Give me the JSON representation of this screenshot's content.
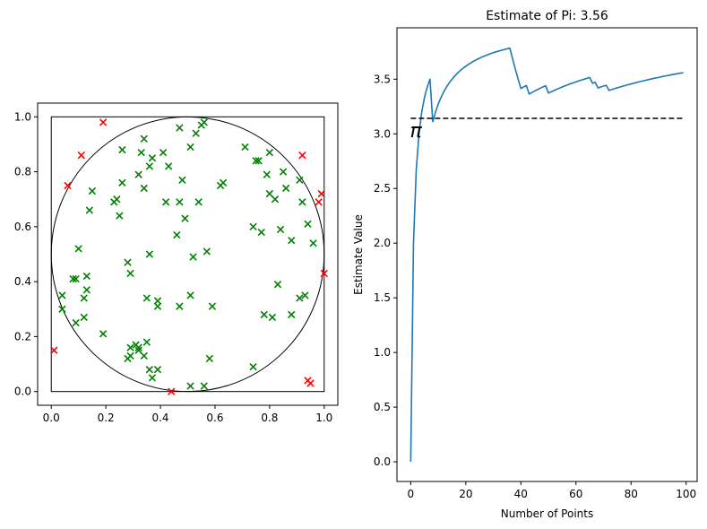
{
  "figure": {
    "background": "#ffffff",
    "colors": {
      "inside": "#008000",
      "outside": "#ff0000",
      "line": "#1f77b4",
      "reference": "#000000"
    }
  },
  "chart_data": [
    {
      "id": "scatter",
      "type": "scatter",
      "title": "",
      "xlabel": "",
      "ylabel": "",
      "xlim": [
        -0.05,
        1.05
      ],
      "ylim": [
        -0.05,
        1.05
      ],
      "xticks": [
        "0.0",
        "0.2",
        "0.4",
        "0.6",
        "0.8",
        "1.0"
      ],
      "yticks": [
        "0.0",
        "0.2",
        "0.4",
        "0.6",
        "0.8",
        "1.0"
      ],
      "shapes": {
        "unit_square": [
          0,
          0,
          1,
          1
        ],
        "circle": {
          "center": [
            0.5,
            0.5
          ],
          "radius": 0.5
        }
      },
      "marker": "x",
      "series": [
        {
          "color": "#008000",
          "points": [
            [
              0.47,
              0.96
            ],
            [
              0.51,
              0.89
            ],
            [
              0.53,
              0.94
            ],
            [
              0.55,
              0.97
            ],
            [
              0.56,
              0.98
            ],
            [
              0.34,
              0.92
            ],
            [
              0.41,
              0.87
            ],
            [
              0.37,
              0.85
            ],
            [
              0.33,
              0.87
            ],
            [
              0.26,
              0.88
            ],
            [
              0.36,
              0.82
            ],
            [
              0.43,
              0.82
            ],
            [
              0.32,
              0.79
            ],
            [
              0.26,
              0.76
            ],
            [
              0.34,
              0.74
            ],
            [
              0.15,
              0.73
            ],
            [
              0.24,
              0.7
            ],
            [
              0.23,
              0.69
            ],
            [
              0.25,
              0.64
            ],
            [
              0.14,
              0.66
            ],
            [
              0.42,
              0.69
            ],
            [
              0.47,
              0.69
            ],
            [
              0.48,
              0.77
            ],
            [
              0.54,
              0.69
            ],
            [
              0.62,
              0.75
            ],
            [
              0.63,
              0.76
            ],
            [
              0.49,
              0.63
            ],
            [
              0.46,
              0.57
            ],
            [
              0.57,
              0.51
            ],
            [
              0.52,
              0.49
            ],
            [
              0.36,
              0.5
            ],
            [
              0.1,
              0.52
            ],
            [
              0.28,
              0.47
            ],
            [
              0.29,
              0.43
            ],
            [
              0.08,
              0.41
            ],
            [
              0.09,
              0.41
            ],
            [
              0.13,
              0.42
            ],
            [
              0.13,
              0.37
            ],
            [
              0.12,
              0.34
            ],
            [
              0.04,
              0.35
            ],
            [
              0.04,
              0.3
            ],
            [
              0.09,
              0.25
            ],
            [
              0.12,
              0.27
            ],
            [
              0.19,
              0.21
            ],
            [
              0.35,
              0.34
            ],
            [
              0.39,
              0.33
            ],
            [
              0.39,
              0.31
            ],
            [
              0.51,
              0.35
            ],
            [
              0.47,
              0.31
            ],
            [
              0.59,
              0.31
            ],
            [
              0.29,
              0.16
            ],
            [
              0.31,
              0.17
            ],
            [
              0.32,
              0.15
            ],
            [
              0.32,
              0.16
            ],
            [
              0.34,
              0.13
            ],
            [
              0.35,
              0.18
            ],
            [
              0.28,
              0.12
            ],
            [
              0.29,
              0.13
            ],
            [
              0.36,
              0.08
            ],
            [
              0.39,
              0.08
            ],
            [
              0.37,
              0.05
            ],
            [
              0.51,
              0.02
            ],
            [
              0.56,
              0.02
            ],
            [
              0.58,
              0.12
            ],
            [
              0.71,
              0.89
            ],
            [
              0.75,
              0.84
            ],
            [
              0.76,
              0.84
            ],
            [
              0.79,
              0.79
            ],
            [
              0.8,
              0.87
            ],
            [
              0.85,
              0.8
            ],
            [
              0.8,
              0.72
            ],
            [
              0.82,
              0.7
            ],
            [
              0.86,
              0.74
            ],
            [
              0.91,
              0.77
            ],
            [
              0.92,
              0.69
            ],
            [
              0.94,
              0.61
            ],
            [
              0.96,
              0.54
            ],
            [
              0.84,
              0.59
            ],
            [
              0.88,
              0.55
            ],
            [
              0.74,
              0.6
            ],
            [
              0.77,
              0.58
            ],
            [
              0.83,
              0.39
            ],
            [
              0.93,
              0.35
            ],
            [
              0.91,
              0.34
            ],
            [
              0.88,
              0.28
            ],
            [
              0.78,
              0.28
            ],
            [
              0.81,
              0.27
            ],
            [
              0.74,
              0.09
            ]
          ]
        },
        {
          "color": "#ff0000",
          "points": [
            [
              0.19,
              0.98
            ],
            [
              0.11,
              0.86
            ],
            [
              0.06,
              0.75
            ],
            [
              0.92,
              0.86
            ],
            [
              0.99,
              0.72
            ],
            [
              0.98,
              0.69
            ],
            [
              1.0,
              0.43
            ],
            [
              0.01,
              0.15
            ],
            [
              0.44,
              0.0
            ],
            [
              0.94,
              0.04
            ],
            [
              0.95,
              0.03
            ]
          ]
        }
      ]
    },
    {
      "id": "convergence",
      "type": "line",
      "title": "Estimate of Pi: 3.56",
      "xlabel": "Number of Points",
      "ylabel": "Estimate Value",
      "xlim": [
        -5,
        104
      ],
      "ylim": [
        -0.18,
        3.97
      ],
      "xticks": [
        "0",
        "20",
        "40",
        "60",
        "80",
        "100"
      ],
      "yticks": [
        "0.0",
        "0.5",
        "1.0",
        "1.5",
        "2.0",
        "2.5",
        "3.0",
        "3.5"
      ],
      "reference": {
        "value": 3.14159,
        "style": "dashed",
        "label": "π"
      },
      "series": [
        {
          "color": "#1f77b4",
          "x": [
            0,
            1,
            2,
            3,
            4,
            5,
            6,
            7,
            8,
            9,
            10,
            11,
            12,
            13,
            14,
            15,
            16,
            17,
            18,
            19,
            20,
            21,
            22,
            23,
            24,
            25,
            26,
            27,
            28,
            29,
            30,
            31,
            32,
            33,
            34,
            35,
            36,
            37,
            38,
            39,
            40,
            41,
            42,
            43,
            44,
            45,
            46,
            47,
            48,
            49,
            50,
            51,
            52,
            53,
            54,
            55,
            56,
            57,
            58,
            59,
            60,
            61,
            62,
            63,
            64,
            65,
            66,
            67,
            68,
            69,
            70,
            71,
            72,
            73,
            74,
            75,
            76,
            77,
            78,
            79,
            80,
            81,
            82,
            83,
            84,
            85,
            86,
            87,
            88,
            89,
            90,
            91,
            92,
            93,
            94,
            95,
            96,
            97,
            98,
            99
          ],
          "values": [
            0.0,
            2.0,
            2.667,
            3.0,
            3.2,
            3.333,
            3.429,
            3.5,
            3.111,
            3.2,
            3.273,
            3.333,
            3.385,
            3.429,
            3.467,
            3.5,
            3.529,
            3.556,
            3.579,
            3.6,
            3.619,
            3.636,
            3.652,
            3.667,
            3.68,
            3.692,
            3.704,
            3.714,
            3.724,
            3.733,
            3.742,
            3.75,
            3.758,
            3.765,
            3.771,
            3.778,
            3.784,
            3.684,
            3.59,
            3.5,
            3.415,
            3.429,
            3.442,
            3.364,
            3.378,
            3.391,
            3.404,
            3.417,
            3.429,
            3.44,
            3.373,
            3.385,
            3.396,
            3.407,
            3.418,
            3.429,
            3.439,
            3.448,
            3.458,
            3.467,
            3.475,
            3.484,
            3.492,
            3.5,
            3.508,
            3.515,
            3.463,
            3.471,
            3.42,
            3.429,
            3.437,
            3.444,
            3.397,
            3.405,
            3.413,
            3.421,
            3.429,
            3.436,
            3.443,
            3.45,
            3.457,
            3.463,
            3.47,
            3.476,
            3.482,
            3.488,
            3.494,
            3.5,
            3.506,
            3.511,
            3.516,
            3.522,
            3.527,
            3.532,
            3.537,
            3.542,
            3.546,
            3.551,
            3.556,
            3.56
          ]
        }
      ]
    }
  ]
}
